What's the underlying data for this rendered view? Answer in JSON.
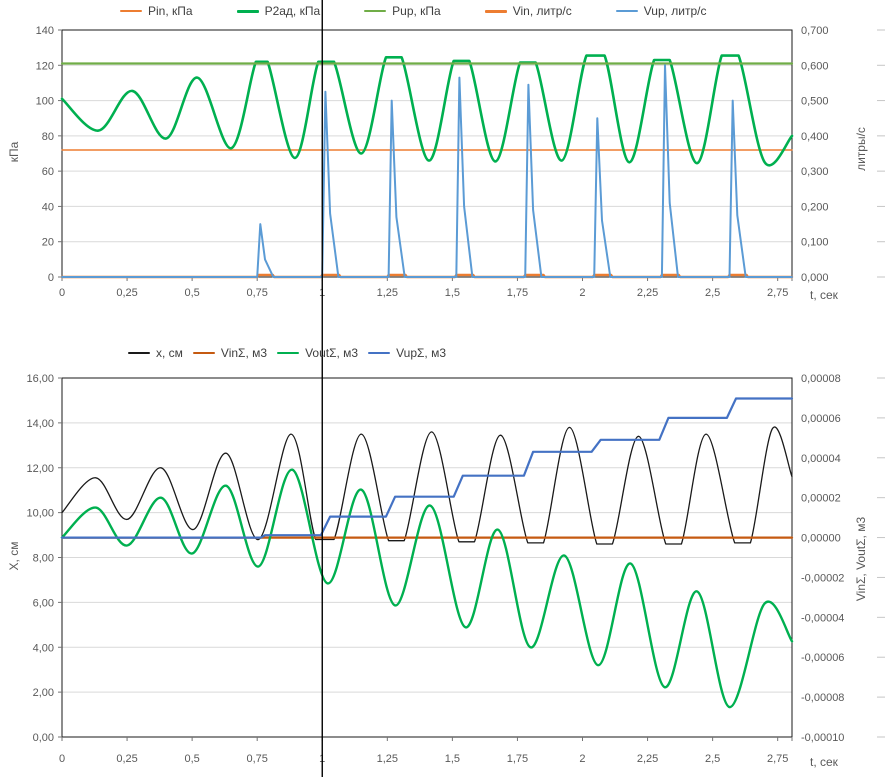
{
  "colors": {
    "grid": "#d9d9d9",
    "plot_border": "#1a1a1a",
    "axis_text": "#595959",
    "tick": "#737373",
    "edge_tick": "#c6c6c6",
    "annotation_line": "#000000"
  },
  "chart_data": [
    {
      "type": "line",
      "title": "",
      "x_axis": {
        "min": 0,
        "max": 2.805,
        "title": "t, сек",
        "tick_values": [
          0,
          0.25,
          0.5,
          0.75,
          1,
          1.25,
          1.5,
          1.75,
          2,
          2.25,
          2.5,
          2.75
        ],
        "tick_labels": [
          "0",
          "0,25",
          "0,5",
          "0,75",
          "1",
          "1,25",
          "1,5",
          "1,75",
          "2",
          "2,25",
          "2,5",
          "2,75"
        ]
      },
      "y_left": {
        "min": 0,
        "max": 140,
        "title": "кПа",
        "tick_values": [
          140,
          120,
          100,
          80,
          60,
          40,
          20,
          0
        ],
        "tick_labels": [
          "140",
          "120",
          "100",
          "80",
          "60",
          "40",
          "20",
          "0"
        ]
      },
      "y_right": {
        "min": 0,
        "max": 0.7,
        "title": "литры/с",
        "tick_values": [
          0.7,
          0.6,
          0.5,
          0.4,
          0.3,
          0.2,
          0.1,
          0
        ],
        "tick_labels": [
          "0,700",
          "0,600",
          "0,500",
          "0,400",
          "0,300",
          "0,200",
          "0,100",
          "0,000"
        ]
      },
      "annotation_vline_t": 1.0,
      "legend": [
        {
          "label": "Pin, кПа",
          "color": "#ED7D31",
          "thickness": 1.5
        },
        {
          "label": "P2ад, кПа",
          "color": "#00B050",
          "thickness": 3
        },
        {
          "label": "Pup, кПа",
          "color": "#70AD47",
          "thickness": 2.5
        },
        {
          "label": "Vin, литр/с",
          "color": "#ED7D31",
          "thickness": 3
        },
        {
          "label": "Vup, литр/с",
          "color": "#5B9BD5",
          "thickness": 2.5
        }
      ],
      "series": [
        {
          "name": "Pin, кПа",
          "axis": "left",
          "color": "#ED7D31",
          "width": 1.4,
          "smooth": false,
          "points": [
            [
              0,
              72
            ],
            [
              2.805,
              72
            ]
          ]
        },
        {
          "name": "P2ад, кПа",
          "axis": "left",
          "color": "#00B050",
          "width": 2.6,
          "smooth": true,
          "points": [
            [
              0,
              101
            ],
            [
              0.14,
              83
            ],
            [
              0.27,
              105.5
            ],
            [
              0.4,
              78.5
            ],
            [
              0.52,
              113
            ],
            [
              0.65,
              73
            ],
            [
              0.745,
              122
            ],
            [
              0.79,
              122
            ],
            [
              0.895,
              67.5
            ],
            [
              0.985,
              122
            ],
            [
              1.045,
              122
            ],
            [
              1.15,
              70
            ],
            [
              1.245,
              124.5
            ],
            [
              1.305,
              124.5
            ],
            [
              1.41,
              66
            ],
            [
              1.505,
              122.5
            ],
            [
              1.565,
              122.5
            ],
            [
              1.665,
              65.5
            ],
            [
              1.76,
              121.5
            ],
            [
              1.82,
              121.5
            ],
            [
              1.92,
              66
            ],
            [
              2.015,
              125.5
            ],
            [
              2.085,
              125.5
            ],
            [
              2.18,
              65
            ],
            [
              2.275,
              123
            ],
            [
              2.335,
              123
            ],
            [
              2.44,
              64.5
            ],
            [
              2.535,
              125.5
            ],
            [
              2.6,
              125.5
            ],
            [
              2.7,
              65
            ],
            [
              2.805,
              80
            ]
          ]
        },
        {
          "name": "Pup, кПа",
          "axis": "left",
          "color": "#70AD47",
          "width": 2.2,
          "smooth": false,
          "points": [
            [
              0,
              121
            ],
            [
              2.805,
              121
            ]
          ]
        },
        {
          "name": "Vin, литр/с",
          "axis": "right",
          "color": "#ED7D31",
          "width": 2.4,
          "smooth": false,
          "points": [
            [
              0,
              0
            ],
            [
              0.75,
              0
            ],
            [
              0.755,
              0.006
            ],
            [
              0.81,
              0.006
            ],
            [
              0.815,
              0
            ],
            [
              0.995,
              0
            ],
            [
              1.0,
              0.006
            ],
            [
              1.065,
              0.006
            ],
            [
              1.07,
              0
            ],
            [
              1.25,
              0
            ],
            [
              1.255,
              0.006
            ],
            [
              1.32,
              0.006
            ],
            [
              1.325,
              0
            ],
            [
              1.51,
              0
            ],
            [
              1.515,
              0.006
            ],
            [
              1.58,
              0.006
            ],
            [
              1.585,
              0
            ],
            [
              1.775,
              0
            ],
            [
              1.78,
              0.006
            ],
            [
              1.85,
              0.006
            ],
            [
              1.855,
              0
            ],
            [
              2.04,
              0
            ],
            [
              2.045,
              0.006
            ],
            [
              2.11,
              0.006
            ],
            [
              2.115,
              0
            ],
            [
              2.3,
              0
            ],
            [
              2.305,
              0.006
            ],
            [
              2.37,
              0.006
            ],
            [
              2.375,
              0
            ],
            [
              2.56,
              0
            ],
            [
              2.565,
              0.006
            ],
            [
              2.63,
              0.006
            ],
            [
              2.635,
              0
            ],
            [
              2.805,
              0
            ]
          ]
        },
        {
          "name": "Vup, литр/с",
          "axis": "right",
          "color": "#5B9BD5",
          "width": 2,
          "smooth": false,
          "points": [
            [
              0,
              0
            ],
            [
              0.75,
              0
            ],
            [
              0.762,
              0.15
            ],
            [
              0.78,
              0.05
            ],
            [
              0.812,
              0
            ],
            [
              1.0,
              0
            ],
            [
              1.012,
              0.525
            ],
            [
              1.03,
              0.18
            ],
            [
              1.062,
              0
            ],
            [
              1.255,
              0
            ],
            [
              1.267,
              0.5
            ],
            [
              1.285,
              0.17
            ],
            [
              1.317,
              0
            ],
            [
              1.515,
              0
            ],
            [
              1.527,
              0.565
            ],
            [
              1.545,
              0.2
            ],
            [
              1.577,
              0
            ],
            [
              1.78,
              0
            ],
            [
              1.792,
              0.545
            ],
            [
              1.81,
              0.19
            ],
            [
              1.842,
              0
            ],
            [
              2.045,
              0
            ],
            [
              2.057,
              0.45
            ],
            [
              2.075,
              0.16
            ],
            [
              2.107,
              0
            ],
            [
              2.305,
              0
            ],
            [
              2.317,
              0.6
            ],
            [
              2.335,
              0.21
            ],
            [
              2.367,
              0
            ],
            [
              2.565,
              0
            ],
            [
              2.577,
              0.5
            ],
            [
              2.595,
              0.175
            ],
            [
              2.627,
              0
            ],
            [
              2.805,
              0
            ]
          ]
        }
      ]
    },
    {
      "type": "line",
      "title": "",
      "x_axis": {
        "min": 0,
        "max": 2.805,
        "title": "t, сек",
        "tick_values": [
          0,
          0.25,
          0.5,
          0.75,
          1,
          1.25,
          1.5,
          1.75,
          2,
          2.25,
          2.5,
          2.75
        ],
        "tick_labels": [
          "0",
          "0,25",
          "0,5",
          "0,75",
          "1",
          "1,25",
          "1,5",
          "1,75",
          "2",
          "2,25",
          "2,5",
          "2,75"
        ]
      },
      "y_left": {
        "min": 0,
        "max": 16,
        "title": "X, см",
        "tick_values": [
          16,
          14,
          12,
          10,
          8,
          6,
          4,
          2,
          0
        ],
        "tick_labels": [
          "16,00",
          "14,00",
          "12,00",
          "10,00",
          "8,00",
          "6,00",
          "4,00",
          "2,00",
          "0,00"
        ]
      },
      "y_right": {
        "min": -0.0001,
        "max": 8e-05,
        "title": "VinΣ, VoutΣ, м3",
        "tick_values": [
          8e-05,
          6e-05,
          4e-05,
          2e-05,
          0,
          -2e-05,
          -4e-05,
          -6e-05,
          -8e-05,
          -0.0001
        ],
        "tick_labels": [
          "0,00008",
          "0,00006",
          "0,00004",
          "0,00002",
          "0,00000",
          "-0,00002",
          "-0,00004",
          "-0,00006",
          "-0,00008",
          "-0,00010"
        ]
      },
      "annotation_vline_t": 1.0,
      "legend": [
        {
          "label": "x, см",
          "color": "#1a1a1a",
          "thickness": 1.5
        },
        {
          "label": "VinΣ, м3",
          "color": "#C55A11",
          "thickness": 2.5
        },
        {
          "label": "VoutΣ, м3",
          "color": "#00B050",
          "thickness": 2.5
        },
        {
          "label": "VupΣ, м3",
          "color": "#4472C4",
          "thickness": 2.5
        }
      ],
      "series": [
        {
          "name": "x, см",
          "axis": "left",
          "color": "#1a1a1a",
          "width": 1.3,
          "smooth": true,
          "points": [
            [
              0,
              10.0
            ],
            [
              0.13,
              11.55
            ],
            [
              0.25,
              9.7
            ],
            [
              0.38,
              12.0
            ],
            [
              0.505,
              9.25
            ],
            [
              0.63,
              12.65
            ],
            [
              0.755,
              8.8
            ],
            [
              0.88,
              13.5
            ],
            [
              0.975,
              8.8
            ],
            [
              1.045,
              8.8
            ],
            [
              1.15,
              13.5
            ],
            [
              1.255,
              8.75
            ],
            [
              1.315,
              8.75
            ],
            [
              1.42,
              13.6
            ],
            [
              1.525,
              8.7
            ],
            [
              1.585,
              8.7
            ],
            [
              1.685,
              13.45
            ],
            [
              1.79,
              8.65
            ],
            [
              1.85,
              8.65
            ],
            [
              1.95,
              13.8
            ],
            [
              2.055,
              8.6
            ],
            [
              2.115,
              8.6
            ],
            [
              2.215,
              13.4
            ],
            [
              2.32,
              8.6
            ],
            [
              2.38,
              8.6
            ],
            [
              2.475,
              13.5
            ],
            [
              2.585,
              8.65
            ],
            [
              2.645,
              8.65
            ],
            [
              2.73,
              13.75
            ],
            [
              2.805,
              11.6
            ]
          ]
        },
        {
          "name": "VinΣ, м3",
          "axis": "right",
          "color": "#C55A11",
          "width": 2.2,
          "smooth": false,
          "points": [
            [
              0,
              0
            ],
            [
              2.805,
              0
            ]
          ]
        },
        {
          "name": "VoutΣ, м3",
          "axis": "right",
          "color": "#00B050",
          "width": 2.4,
          "smooth": true,
          "points": [
            [
              0,
              0
            ],
            [
              0.13,
              1.5e-05
            ],
            [
              0.25,
              -4e-06
            ],
            [
              0.38,
              2e-05
            ],
            [
              0.5,
              -8e-06
            ],
            [
              0.63,
              2.6e-05
            ],
            [
              0.755,
              -1.45e-05
            ],
            [
              0.885,
              3.4e-05
            ],
            [
              1.02,
              -2.3e-05
            ],
            [
              1.15,
              2.4e-05
            ],
            [
              1.28,
              -3.4e-05
            ],
            [
              1.415,
              1.6e-05
            ],
            [
              1.55,
              -4.5e-05
            ],
            [
              1.675,
              4e-06
            ],
            [
              1.8,
              -5.5e-05
            ],
            [
              1.93,
              -9e-06
            ],
            [
              2.06,
              -6.4e-05
            ],
            [
              2.185,
              -1.3e-05
            ],
            [
              2.315,
              -7.5e-05
            ],
            [
              2.44,
              -2.7e-05
            ],
            [
              2.565,
              -8.5e-05
            ],
            [
              2.7,
              -3.3e-05
            ],
            [
              2.805,
              -5.2e-05
            ]
          ]
        },
        {
          "name": "VupΣ, м3",
          "axis": "right",
          "color": "#4472C4",
          "width": 2.2,
          "smooth": false,
          "points": [
            [
              0,
              0
            ],
            [
              0.765,
              0
            ],
            [
              0.78,
              1.2e-06
            ],
            [
              0.995,
              1.2e-06
            ],
            [
              1.03,
              1.05e-05
            ],
            [
              1.245,
              1.05e-05
            ],
            [
              1.28,
              2.05e-05
            ],
            [
              1.505,
              2.05e-05
            ],
            [
              1.54,
              3.1e-05
            ],
            [
              1.775,
              3.1e-05
            ],
            [
              1.81,
              4.3e-05
            ],
            [
              2.035,
              4.3e-05
            ],
            [
              2.07,
              4.9e-05
            ],
            [
              2.295,
              4.9e-05
            ],
            [
              2.33,
              6e-05
            ],
            [
              2.555,
              6e-05
            ],
            [
              2.59,
              6.97e-05
            ],
            [
              2.805,
              6.97e-05
            ]
          ]
        }
      ]
    }
  ]
}
